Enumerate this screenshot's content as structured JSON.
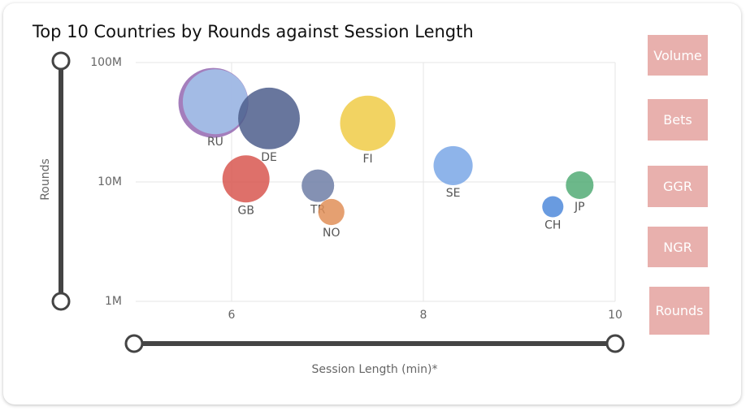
{
  "chart_data": {
    "type": "bubble",
    "title": "Top 10 Countries by Rounds against Session Length",
    "x_label": "Session Length (min)*",
    "y_label": "Rounds",
    "categories": [
      null,
      "RU",
      "DE",
      "FI",
      "GB",
      "SE",
      "TR",
      "JP",
      "NO",
      "CH"
    ],
    "x": [
      5.81,
      5.83,
      6.39,
      7.42,
      6.15,
      8.31,
      6.9,
      9.63,
      7.04,
      9.35
    ],
    "values": [
      46000000,
      47000000,
      34000000,
      31000000,
      10600000,
      13700000,
      9300000,
      9400000,
      5600000,
      6200000
    ],
    "sizes": [
      185,
      160,
      144,
      116,
      84,
      58,
      40,
      29,
      26,
      17
    ],
    "colors": [
      "#9467b0",
      "#a3c5ec",
      "#4d5e8c",
      "#f0cb47",
      "#d85750",
      "#7aa7e6",
      "#6e7ea6",
      "#52ab76",
      "#e08f58",
      "#4f89da"
    ],
    "xlim": [
      5,
      10
    ],
    "ylim": [
      1000000,
      100000000
    ],
    "xticks": [
      6,
      8,
      10
    ],
    "yticks": [
      {
        "value": 100000000,
        "label": "100M"
      },
      {
        "value": 10000000,
        "label": "10M"
      },
      {
        "value": 1000000,
        "label": "1M"
      }
    ],
    "log_y": true,
    "grid": true
  },
  "buttons": [
    "Volume",
    "Bets",
    "GGR",
    "NGR",
    "Rounds"
  ]
}
